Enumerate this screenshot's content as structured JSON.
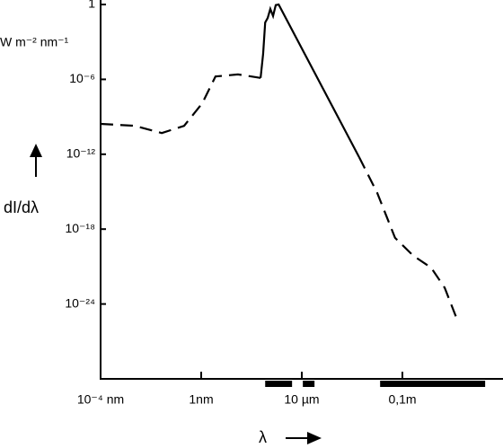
{
  "chart_data": {
    "type": "line",
    "y_axis_label": "W m⁻² nm⁻¹",
    "y_quantity": "dI/dλ",
    "x_axis_label": "λ",
    "xscale": "log",
    "yscale": "log",
    "color": "#000000",
    "xlim": [
      1e-13,
      1000.0
    ],
    "ylim": [
      1e-30,
      1
    ],
    "xticks": [
      {
        "value": 1e-13,
        "label": "10⁻⁴ nm"
      },
      {
        "value": 1e-09,
        "label": "1nm"
      },
      {
        "value": 1e-05,
        "label": "10 µm"
      },
      {
        "value": 0.1,
        "label": "0,1m"
      }
    ],
    "yticks": [
      1,
      {
        "value": 1e-06,
        "label": "10⁻⁶"
      },
      {
        "value": 1e-12,
        "label": "10⁻¹²"
      },
      {
        "value": 1e-18,
        "label": "10⁻¹⁸"
      },
      {
        "value": 1e-24,
        "label": "10⁻²⁴"
      }
    ],
    "series": [
      {
        "linestyle": "dashed",
        "x": [
          1e-13,
          2.3e-12,
          2.7e-11,
          2.1e-10,
          1.1e-09,
          3.7e-09,
          2.9e-08,
          2.3e-07
        ],
        "values": [
          2.7e-10,
          1.9e-10,
          5e-11,
          1.9e-10,
          1.2e-08,
          1.7e-06,
          2.5e-06,
          1.3e-06
        ]
      },
      {
        "linestyle": "solid",
        "x": [
          2.3e-07,
          2.9e-07,
          3.5e-07,
          4.4e-07,
          5.6e-07,
          7.2e-07,
          9.2e-07,
          1.2e-06,
          0.0019
        ],
        "values": [
          1.3e-06,
          0.00011,
          0.036,
          0.083,
          0.44,
          0.12,
          0.9,
          1,
          5.9e-13
        ]
      },
      {
        "linestyle": "dashed",
        "x": [
          0.0019,
          0.01,
          0.051,
          0.27,
          1.4,
          4.8,
          16
        ],
        "values": [
          5.9e-13,
          7.9e-16,
          2e-19,
          7.4e-21,
          8e-22,
          2e-23,
          4e-26
        ]
      }
    ],
    "bands": [
      [
        3.5e-07,
        4.1e-06
      ],
      [
        1.1e-05,
        3.2e-05
      ],
      [
        0.013,
        195
      ]
    ]
  }
}
